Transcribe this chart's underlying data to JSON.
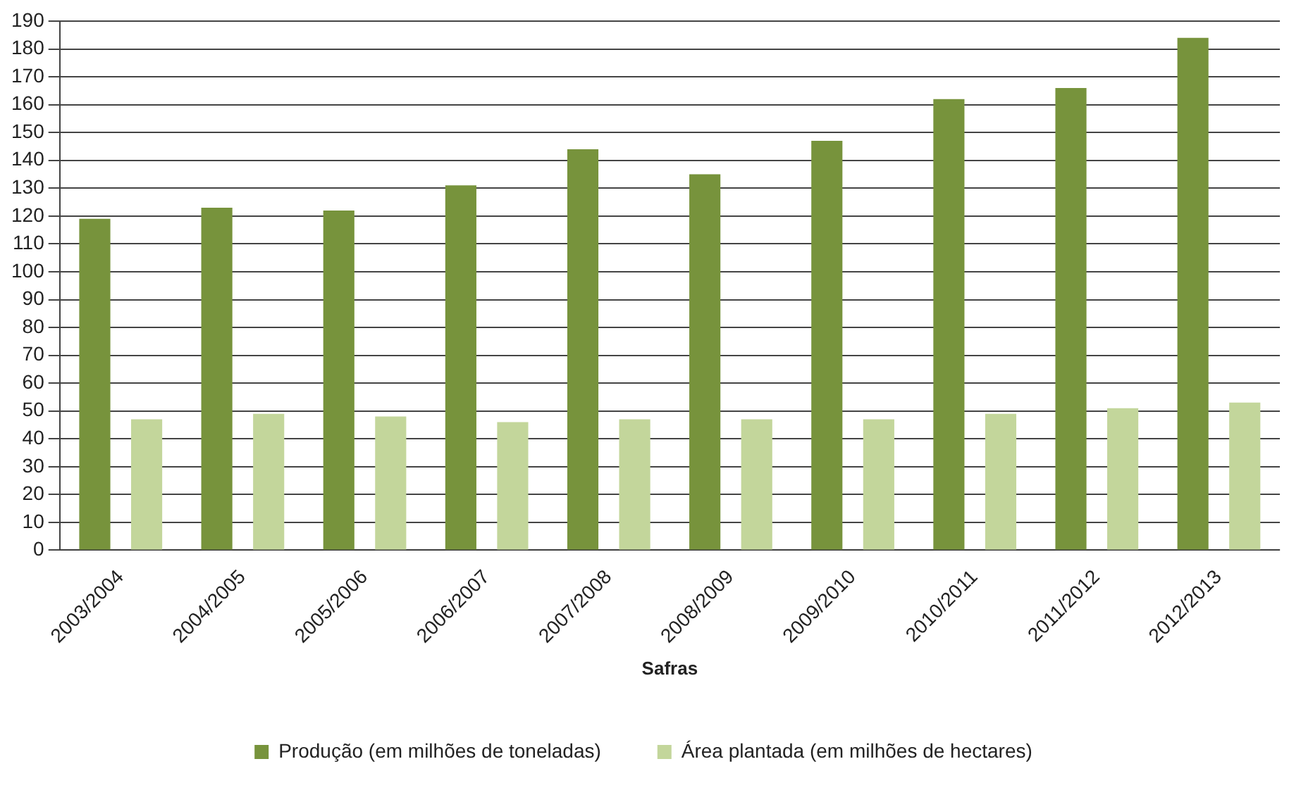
{
  "chart_data": {
    "type": "bar",
    "xlabel": "Safras",
    "categories": [
      "2003/2004",
      "2004/2005",
      "2005/2006",
      "2006/2007",
      "2007/2008",
      "2008/2009",
      "2009/2010",
      "2010/2011",
      "2011/2012",
      "2012/2013"
    ],
    "series": [
      {
        "name": "Produção (em milhões de toneladas)",
        "color": "#77933c",
        "values": [
          119,
          123,
          122,
          131,
          144,
          135,
          147,
          162,
          166,
          184
        ]
      },
      {
        "name": "Área plantada (em milhões de hectares)",
        "color": "#c3d69b",
        "values": [
          47,
          49,
          48,
          46,
          47,
          47,
          47,
          49,
          51,
          53
        ]
      }
    ],
    "ylim": [
      0,
      190
    ],
    "yticks": [
      0,
      10,
      20,
      30,
      40,
      50,
      60,
      70,
      80,
      90,
      100,
      110,
      120,
      130,
      140,
      150,
      160,
      170,
      180,
      190
    ],
    "grid": "y",
    "legend": "bottom"
  }
}
